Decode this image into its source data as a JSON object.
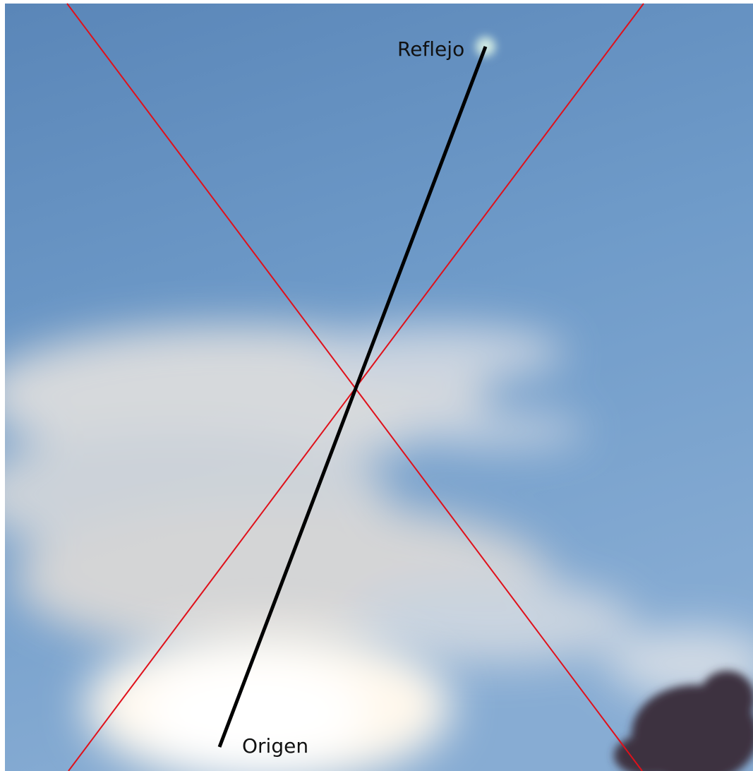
{
  "annotations": {
    "reflection": "Reflejo",
    "origin": "Origen"
  }
}
